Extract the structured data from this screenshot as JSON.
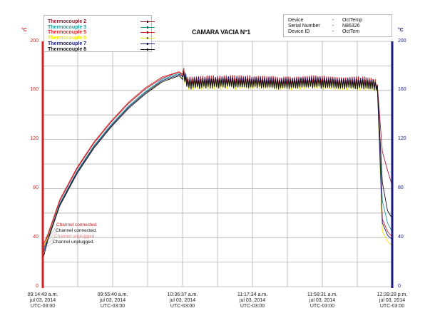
{
  "chart_data": {
    "type": "line",
    "title": "CAMARA VACIA N°1",
    "xlabel": "",
    "ylabel_left": "°C",
    "ylabel_right": "°C",
    "ylim": [
      0,
      200
    ],
    "y_ticks": [
      0,
      40,
      80,
      120,
      160,
      200
    ],
    "grid": true,
    "legend_position": "top-left",
    "x_ticks": [
      {
        "time": "09:14:43 a.m.",
        "date": "jul 03, 2014",
        "tz": "UTC-03:00"
      },
      {
        "time": "09:55:40 a.m.",
        "date": "jul 03, 2014",
        "tz": "UTC-03:00"
      },
      {
        "time": "10:36:37 a.m.",
        "date": "jul 03, 2014",
        "tz": "UTC-03:00"
      },
      {
        "time": "11:17:34 a.m.",
        "date": "jul 03, 2014",
        "tz": "UTC-03:00"
      },
      {
        "time": "11:58:31 a.m.",
        "date": "jul 03, 2014",
        "tz": "UTC-03:00"
      },
      {
        "time": "12:39:28 p.m.",
        "date": "jul 03, 2014",
        "tz": "UTC-03:00"
      }
    ],
    "x_minutes_from_start": [
      0,
      3,
      10,
      20,
      30,
      40,
      50,
      60,
      70,
      82,
      85,
      100,
      120,
      140,
      160,
      180,
      190,
      196,
      199,
      202,
      205
    ],
    "series": [
      {
        "name": "Thermocouple 2",
        "color": "#a0203a",
        "values": [
          30,
          42,
          70,
          96,
          117,
          134,
          149,
          161,
          170,
          176,
          167,
          168,
          168,
          167,
          168,
          167,
          167,
          165,
          110,
          95,
          81
        ]
      },
      {
        "name": "Thermocouple 3",
        "color": "#1a9a9a",
        "values": [
          28,
          40,
          68,
          94,
          115,
          132,
          147,
          159,
          169,
          175,
          166,
          167,
          167,
          166,
          167,
          166,
          166,
          164,
          70,
          52,
          44
        ]
      },
      {
        "name": "Thermocouple 5",
        "color": "#e02020",
        "values": [
          33,
          43,
          71,
          97,
          118,
          135,
          150,
          162,
          171,
          176,
          167,
          168,
          168,
          167,
          168,
          167,
          167,
          165,
          55,
          45,
          40
        ]
      },
      {
        "name": "Thermocouple 6",
        "color": "#e8e000",
        "values": [
          32,
          40,
          67,
          93,
          114,
          131,
          146,
          158,
          167,
          173,
          164,
          165,
          165,
          164,
          165,
          164,
          164,
          163,
          45,
          37,
          33
        ]
      },
      {
        "name": "Thermocouple 7",
        "color": "#1a1a80",
        "values": [
          26,
          39,
          67,
          93,
          114,
          131,
          146,
          158,
          168,
          174,
          166,
          167,
          167,
          166,
          167,
          166,
          166,
          164,
          52,
          42,
          38
        ]
      },
      {
        "name": "Thermocouple 8",
        "color": "#111111",
        "values": [
          22,
          38,
          66,
          92,
          113,
          130,
          145,
          157,
          167,
          173,
          165,
          166,
          166,
          165,
          166,
          165,
          165,
          164,
          85,
          62,
          55
        ]
      }
    ],
    "annotations": [
      "Channel connected.",
      "Channel connected.",
      "Channel unplugged.",
      "Channel unplugged."
    ]
  },
  "chart": {
    "title": "CAMARA VACIA N°1",
    "unit_left": "°C",
    "unit_right": "°C",
    "legend": [
      {
        "label": "Thermocouple 2",
        "color": "#8b1a2a"
      },
      {
        "label": "Thermocouple 3",
        "color": "#1a9a9a"
      },
      {
        "label": "Thermocouple 5",
        "color": "#e02020"
      },
      {
        "label": "Thermocouple 6",
        "color": "#f0e800"
      },
      {
        "label": "Thermocouple 7",
        "color": "#1a1a80"
      },
      {
        "label": "Thermocouple 8",
        "color": "#111111"
      }
    ],
    "info": [
      {
        "key": "Device",
        "dash": "-",
        "value": "OctTemp"
      },
      {
        "key": "Serial Number",
        "dash": "-",
        "value": "N86326"
      },
      {
        "key": "Device ID",
        "dash": "-",
        "value": "OctTem"
      }
    ],
    "y_ticks": [
      "0",
      "40",
      "80",
      "120",
      "160",
      "200"
    ],
    "annotations": [
      {
        "text": "Channel connected.",
        "color": "#c02020"
      },
      {
        "text": "Channel connected.",
        "color": "#111111"
      },
      {
        "text": "Channel unplugged.",
        "color": "#c02020"
      },
      {
        "text": "Channel unplugged.",
        "color": "#111111"
      }
    ],
    "axis_colors": {
      "left": "#d42020",
      "right": "#1a1a7a",
      "grid": "#b0b0b0"
    }
  }
}
